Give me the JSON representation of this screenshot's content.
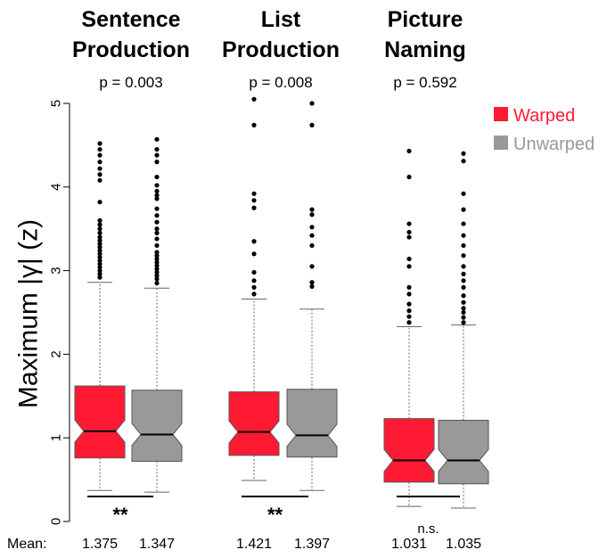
{
  "chart_data": {
    "type": "box",
    "ylabel": "Maximum |γ| (z)",
    "ylim": [
      0,
      5
    ],
    "yticks": [
      "0",
      "1",
      "2",
      "3",
      "4",
      "5"
    ],
    "legend": [
      {
        "name": "Warped",
        "color": "#ff1a33"
      },
      {
        "name": "Unwarped",
        "color": "#999999"
      }
    ],
    "legend_position": "top-right",
    "mean_label": "Mean:",
    "panels": [
      {
        "title_lines": [
          "Sentence",
          "Production"
        ],
        "p_text": "p = 0.003",
        "significance": "**",
        "boxes": [
          {
            "series": "Warped",
            "mean": "1.375",
            "whisker_low": 0.37,
            "q1": 0.76,
            "median": 1.08,
            "q3": 1.62,
            "whisker_high": 2.86,
            "outliers": [
              2.92,
              2.96,
              3.0,
              3.04,
              3.08,
              3.12,
              3.16,
              3.2,
              3.24,
              3.28,
              3.32,
              3.36,
              3.4,
              3.45,
              3.5,
              3.55,
              3.6,
              3.82,
              4.08,
              4.15,
              4.22,
              4.3,
              4.38,
              4.45,
              4.52
            ]
          },
          {
            "series": "Unwarped",
            "mean": "1.347",
            "whisker_low": 0.35,
            "q1": 0.72,
            "median": 1.04,
            "q3": 1.57,
            "whisker_high": 2.79,
            "outliers": [
              2.85,
              2.9,
              2.94,
              2.98,
              3.02,
              3.06,
              3.1,
              3.14,
              3.18,
              3.22,
              3.3,
              3.38,
              3.45,
              3.5,
              3.58,
              3.66,
              3.74,
              3.86,
              3.9,
              3.95,
              4.02,
              4.12,
              4.3,
              4.38,
              4.45,
              4.57
            ]
          }
        ]
      },
      {
        "title_lines": [
          "List",
          "Production"
        ],
        "p_text": "p = 0.008",
        "significance": "**",
        "boxes": [
          {
            "series": "Warped",
            "mean": "1.421",
            "whisker_low": 0.49,
            "q1": 0.79,
            "median": 1.07,
            "q3": 1.55,
            "whisker_high": 2.66,
            "outliers": [
              2.72,
              2.8,
              2.88,
              2.98,
              3.2,
              3.35,
              3.75,
              3.84,
              3.92,
              4.74,
              5.05
            ]
          },
          {
            "series": "Unwarped",
            "mean": "1.397",
            "whisker_low": 0.37,
            "q1": 0.77,
            "median": 1.03,
            "q3": 1.58,
            "whisker_high": 2.54,
            "outliers": [
              2.81,
              2.86,
              3.05,
              3.3,
              3.42,
              3.52,
              3.67,
              3.73,
              4.74,
              5.0
            ]
          }
        ]
      },
      {
        "title_lines": [
          "Picture",
          "Naming"
        ],
        "p_text": "p = 0.592",
        "significance": "n.s.",
        "boxes": [
          {
            "series": "Warped",
            "mean": "1.031",
            "whisker_low": 0.18,
            "q1": 0.47,
            "median": 0.73,
            "q3": 1.23,
            "whisker_high": 2.33,
            "outliers": [
              2.38,
              2.45,
              2.52,
              2.6,
              2.72,
              2.8,
              3.05,
              3.14,
              3.4,
              3.46,
              3.56,
              4.12,
              4.43
            ]
          },
          {
            "series": "Unwarped",
            "mean": "1.035",
            "whisker_low": 0.16,
            "q1": 0.45,
            "median": 0.73,
            "q3": 1.21,
            "whisker_high": 2.35,
            "outliers": [
              2.38,
              2.44,
              2.5,
              2.55,
              2.62,
              2.7,
              2.8,
              2.88,
              2.96,
              3.05,
              3.18,
              3.3,
              3.42,
              3.56,
              3.73,
              3.92,
              4.31,
              4.4
            ]
          }
        ]
      }
    ]
  }
}
